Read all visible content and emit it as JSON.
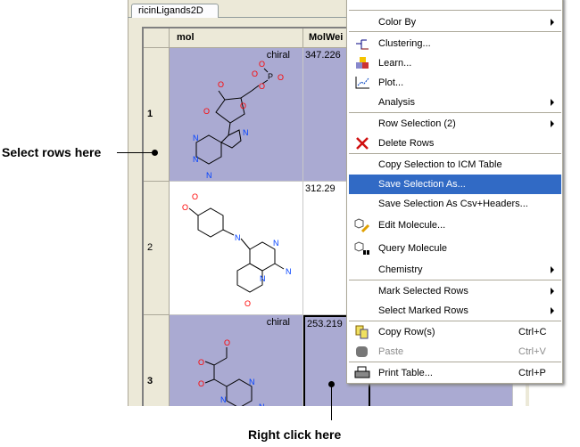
{
  "tab": {
    "label": "ricinLigands2D"
  },
  "table": {
    "columns": [
      "mol",
      "MolWei"
    ],
    "rows": [
      {
        "index": "1",
        "chiral": "chiral",
        "mol_weight": "347.226",
        "selected": true
      },
      {
        "index": "2",
        "chiral": "",
        "mol_weight": "312.29",
        "selected": false
      },
      {
        "index": "3",
        "chiral": "chiral",
        "mol_weight": "253.219",
        "selected": true
      }
    ],
    "atoms": {
      "O": "O",
      "N": "N",
      "P": "P"
    }
  },
  "menu": {
    "items": [
      {
        "label": "Color By",
        "submenu": true
      },
      {
        "label": "Clustering...",
        "icon": "clustering-icon"
      },
      {
        "label": "Learn...",
        "icon": "learn-icon"
      },
      {
        "label": "Plot...",
        "icon": "plot-icon"
      },
      {
        "label": "Analysis",
        "submenu": true
      },
      {
        "label": "Row Selection (2)",
        "submenu": true
      },
      {
        "label": "Delete Rows",
        "icon": "delete-icon"
      },
      {
        "label": "Copy Selection to ICM Table"
      },
      {
        "label": "Save Selection As...",
        "highlighted": true
      },
      {
        "label": "Save Selection As Csv+Headers..."
      },
      {
        "label": "Edit Molecule...",
        "icon": "edit-molecule-icon"
      },
      {
        "label": "Query Molecule",
        "icon": "query-molecule-icon"
      },
      {
        "label": "Chemistry",
        "submenu": true
      },
      {
        "label": "Mark Selected Rows",
        "submenu": true
      },
      {
        "label": "Select Marked Rows",
        "submenu": true
      },
      {
        "label": "Copy Row(s)",
        "shortcut": "Ctrl+C",
        "icon": "copy-icon"
      },
      {
        "label": "Paste",
        "shortcut": "Ctrl+V",
        "icon": "paste-icon",
        "disabled": true
      },
      {
        "label": "Print Table...",
        "shortcut": "Ctrl+P",
        "icon": "print-icon"
      }
    ]
  },
  "annotations": {
    "select_rows": "Select rows here",
    "right_click": "Right click here"
  },
  "colors": {
    "selection": "#aaaad2",
    "menu_highlight": "#316ac5",
    "oxygen": "#ff0000",
    "nitrogen": "#0040ff"
  }
}
